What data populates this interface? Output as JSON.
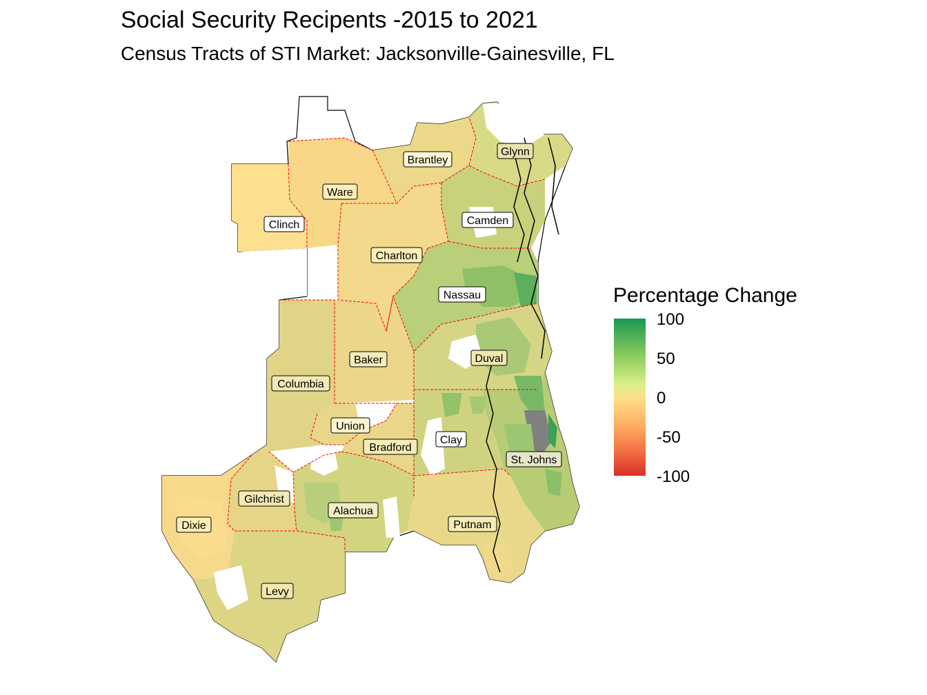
{
  "title": "Social Security Recipents -2015 to 2021",
  "subtitle": "Census Tracts of STI Market: Jacksonville-Gainesville, FL",
  "legend": {
    "title": "Percentage Change",
    "ticks": [
      "100",
      "50",
      "0",
      "-50",
      "-100"
    ],
    "range": [
      -100,
      100
    ],
    "colors": {
      "high": "#1a9850",
      "mid_high": "#91cf60",
      "mid": "#fee08b",
      "mid_low": "#fdae61",
      "low": "#d73027",
      "na": "#808080",
      "county_border": "#ff0000"
    }
  },
  "counties": [
    {
      "name": "Brantley",
      "value": 18
    },
    {
      "name": "Glynn",
      "value": 35
    },
    {
      "name": "Ware",
      "value": 10
    },
    {
      "name": "Clinch",
      "value": null
    },
    {
      "name": "Camden",
      "value": 40
    },
    {
      "name": "Charlton",
      "value": 12
    },
    {
      "name": "Nassau",
      "value": 60
    },
    {
      "name": "Baker",
      "value": 15
    },
    {
      "name": "Duval",
      "value": 25
    },
    {
      "name": "Columbia",
      "value": 20
    },
    {
      "name": "Union",
      "value": 10
    },
    {
      "name": "Bradford",
      "value": 12
    },
    {
      "name": "Clay",
      "value": 30
    },
    {
      "name": "St. Johns",
      "value": 65
    },
    {
      "name": "Gilchrist",
      "value": 20
    },
    {
      "name": "Alachua",
      "value": 30
    },
    {
      "name": "Dixie",
      "value": 8
    },
    {
      "name": "Putnam",
      "value": 14
    },
    {
      "name": "Levy",
      "value": 22
    }
  ]
}
